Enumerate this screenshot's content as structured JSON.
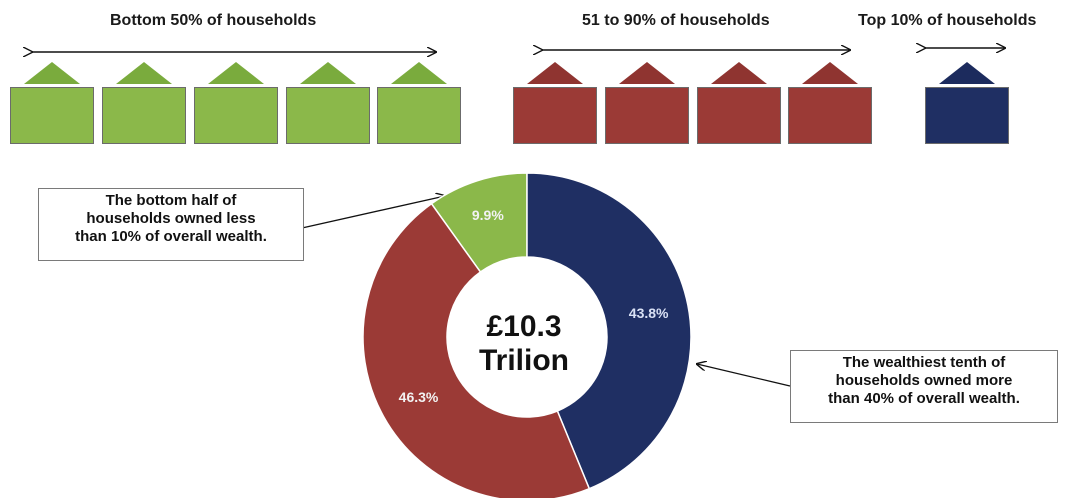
{
  "groups": [
    {
      "label": "Bottom 50% of households",
      "houses": 5,
      "color": "#8bb84a",
      "roof_color": "#7aab3d"
    },
    {
      "label": "51 to 90% of households",
      "houses": 4,
      "color": "#9b3a36",
      "roof_color": "#8f3430"
    },
    {
      "label": "Top 10% of households",
      "houses": 1,
      "color": "#1f2f63",
      "roof_color": "#1c2b5d"
    }
  ],
  "chart_data": {
    "type": "pie",
    "style": "donut",
    "center_text": [
      "£10.3",
      "Trilion"
    ],
    "slices": [
      {
        "label": "9.9%",
        "value": 9.9,
        "color": "#8bb84a"
      },
      {
        "label": "43.8%",
        "value": 43.8,
        "color": "#1f2f63"
      },
      {
        "label": "46.3%",
        "value": 46.3,
        "color": "#9b3a36"
      }
    ]
  },
  "callouts": {
    "left": [
      "The bottom half of",
      "households owned less",
      "than 10% of overall wealth."
    ],
    "right": [
      "The wealthiest tenth of",
      "households owned  more",
      "than 40% of overall wealth."
    ]
  }
}
